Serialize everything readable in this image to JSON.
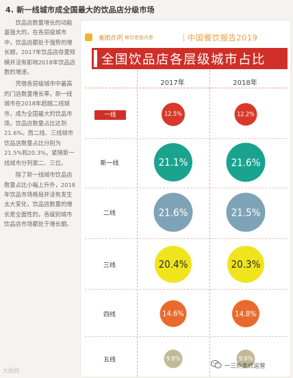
{
  "heading": "4. 新一线城市成全国最大的饮品店分级市场",
  "sidebar": {
    "paragraphs": [
      "饮品店数量增长的动能虽强大的，在各层级城市中，饮品店都处于强势的增长期，2017年饮品店存量规模并没有影响2018年饮品店数的增速。",
      "凭借各层级城市中最高的门店数量增长率，新一线城市在2018年超越二线城市，成为全国最大的饮品市场，饮品店数量占比达到21.6%。而二线、三线城市饮品店数量占比分别为21.5%和20.3%，紧随新一线城市分列第二、三位。",
      "除了新一线城市饮品店数量占比小幅上升外，2018年饮品市场格局并没有发生太大变化，饮品店数量的增长是全面性的，各级别城市饮品店市场都处于增长期。"
    ]
  },
  "card": {
    "brand": "美团点评",
    "slogan": "餐饮老板内参",
    "report": "中国餐饮报告2019",
    "title": "全国饮品店各层级城市占比",
    "years": [
      "2017年",
      "2018年"
    ]
  },
  "chart_data": {
    "type": "table",
    "title": "全国饮品店各层级城市占比",
    "columns": [
      "2017年",
      "2018年"
    ],
    "rows": [
      {
        "label": "一线",
        "values": [
          "12.5%",
          "12.2%"
        ],
        "color": "#d9382b",
        "text_color": "#ffffff"
      },
      {
        "label": "新一线",
        "values": [
          "21.1%",
          "21.6%"
        ],
        "color": "#1aa38f",
        "text_color": "#ffffff"
      },
      {
        "label": "二线",
        "values": [
          "21.6%",
          "21.5%"
        ],
        "color": "#7fa3b6",
        "text_color": "#ffffff"
      },
      {
        "label": "三线",
        "values": [
          "20.4%",
          "20.3%"
        ],
        "color": "#f0e51d",
        "text_color": "#2a2a2a"
      },
      {
        "label": "四线",
        "values": [
          "14.6%",
          "14.8%"
        ],
        "color": "#ea6a2e",
        "text_color": "#ffffff"
      },
      {
        "label": "五线",
        "values": [
          "9.8%",
          "9.8%"
        ],
        "color": "#c2b998",
        "text_color": "#ffffff"
      }
    ]
  },
  "footer": {
    "left": "大图网",
    "right": "一三外卖代运营"
  }
}
